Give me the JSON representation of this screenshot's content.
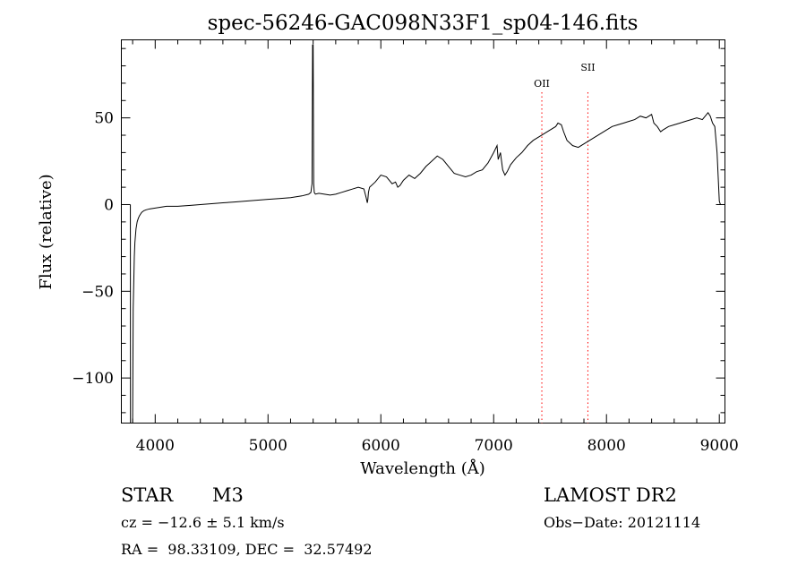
{
  "chart_data": {
    "type": "line",
    "title": "spec-56246-GAC098N33F1_sp04-146.fits",
    "xlabel": "Wavelength (Å)",
    "ylabel": "Flux (relative)",
    "xlim": [
      3700,
      9050
    ],
    "ylim": [
      -126,
      95
    ],
    "x_ticks": [
      4000,
      5000,
      6000,
      7000,
      8000,
      9000
    ],
    "x_tick_labels": [
      "4000",
      "5000",
      "6000",
      "7000",
      "8000",
      "9000"
    ],
    "y_ticks": [
      -100,
      -50,
      0,
      50
    ],
    "y_tick_labels": [
      "−100",
      "−50",
      "0",
      "50"
    ],
    "grid": false,
    "series": [
      {
        "color": "#000000",
        "x": [
          3780,
          3781,
          3800,
          3805,
          3810,
          3815,
          3820,
          3830,
          3840,
          3850,
          3860,
          3870,
          3880,
          3900,
          3920,
          3950,
          4000,
          4050,
          4100,
          4200,
          4300,
          4400,
          4500,
          4600,
          4700,
          4800,
          4900,
          5000,
          5100,
          5200,
          5300,
          5360,
          5380,
          5390,
          5395,
          5400,
          5405,
          5410,
          5420,
          5450,
          5500,
          5550,
          5600,
          5650,
          5700,
          5750,
          5800,
          5850,
          5870,
          5880,
          5885,
          5890,
          5900,
          5950,
          6000,
          6050,
          6100,
          6130,
          6150,
          6170,
          6200,
          6250,
          6300,
          6350,
          6400,
          6450,
          6500,
          6550,
          6600,
          6650,
          6700,
          6750,
          6800,
          6850,
          6900,
          6950,
          7000,
          7030,
          7040,
          7060,
          7080,
          7100,
          7120,
          7150,
          7200,
          7250,
          7300,
          7350,
          7400,
          7450,
          7500,
          7550,
          7570,
          7600,
          7620,
          7650,
          7700,
          7750,
          7800,
          7850,
          7900,
          7950,
          8000,
          8050,
          8100,
          8150,
          8200,
          8250,
          8300,
          8350,
          8400,
          8420,
          8450,
          8480,
          8500,
          8550,
          8600,
          8650,
          8700,
          8750,
          8800,
          8850,
          8900,
          8920,
          8940,
          8960,
          8980,
          9000,
          9010,
          9020
        ],
        "y": [
          0,
          -126,
          -126,
          -60,
          -45,
          -30,
          -22,
          -14,
          -10,
          -8,
          -6.5,
          -5.5,
          -4.5,
          -3.5,
          -3,
          -2.5,
          -2,
          -1.5,
          -1,
          -1,
          -0.5,
          0,
          0.5,
          1,
          1.5,
          2,
          2.5,
          3,
          3.5,
          4,
          5,
          6,
          7,
          12,
          92,
          92,
          12,
          7,
          6,
          6.5,
          6,
          5.5,
          6,
          7,
          8,
          9,
          10,
          9,
          4,
          1,
          3,
          7,
          10,
          13,
          17,
          16,
          12,
          13,
          10,
          11,
          14,
          17,
          15,
          18,
          22,
          25,
          28,
          26,
          22,
          18,
          17,
          16,
          17,
          19,
          20,
          24,
          30,
          34,
          26,
          30,
          20,
          17,
          19,
          23,
          27,
          30,
          34,
          37,
          39,
          41,
          43,
          45,
          47,
          46,
          42,
          37,
          34,
          33,
          35,
          37,
          39,
          41,
          43,
          45,
          46,
          47,
          48,
          49,
          51,
          50,
          52,
          47,
          45,
          42,
          43,
          45,
          46,
          47,
          48,
          49,
          50,
          49,
          53,
          51,
          47,
          45,
          30,
          2,
          0,
          0
        ]
      }
    ],
    "annotations": [
      {
        "label": "OII",
        "x": 7427,
        "color": "#ff0000",
        "style": "dotted"
      },
      {
        "label": "SII",
        "x": 7835,
        "color": "#ff0000",
        "style": "dotted"
      }
    ]
  },
  "info": {
    "object_class": "STAR",
    "subclass": "M3",
    "survey": "LAMOST DR2",
    "cz": "cz = −12.6 ± 5.1 km/s",
    "obs_date": "Obs−Date: 20121114",
    "coords": "RA =  98.33109, DEC =  32.57492"
  }
}
